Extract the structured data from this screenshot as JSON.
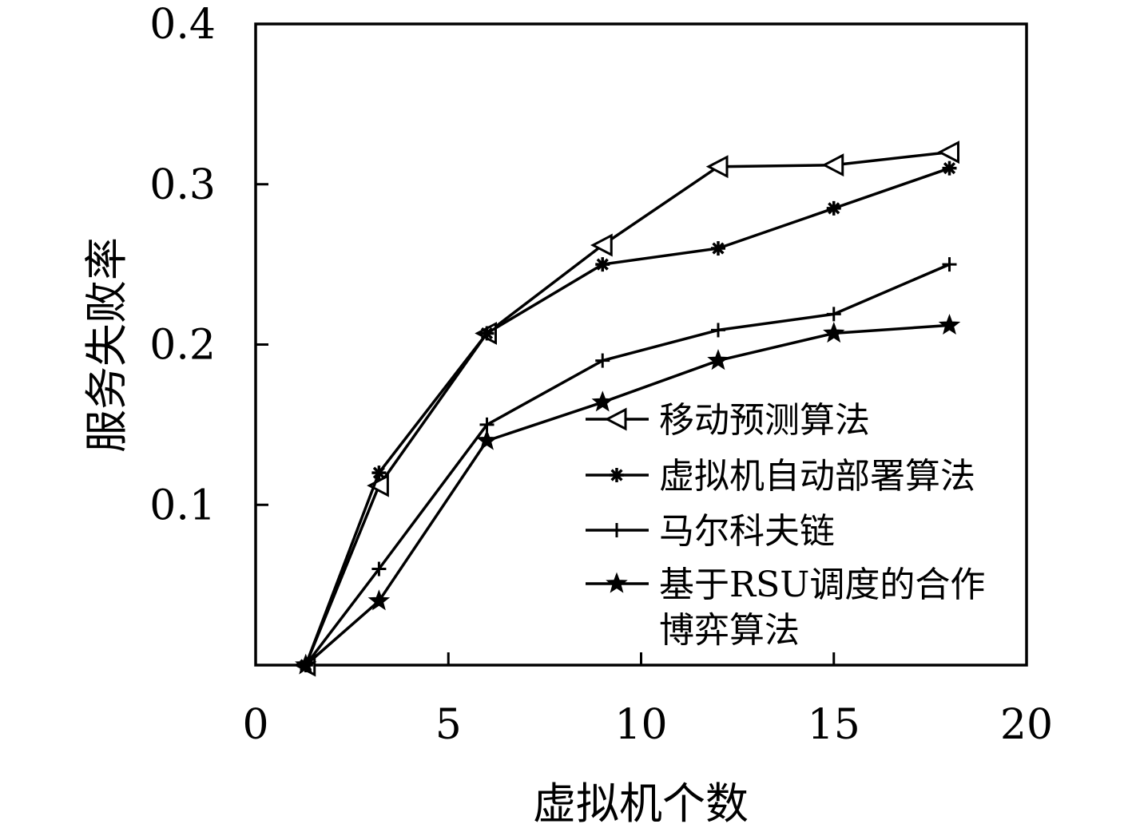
{
  "chart_data": {
    "type": "line",
    "title": "",
    "xlabel": "虚拟机个数",
    "ylabel": "服务失败率",
    "xlim": [
      0,
      20
    ],
    "ylim": [
      0,
      0.4
    ],
    "xticks": [
      0,
      5,
      10,
      15,
      20
    ],
    "xtick_labels": [
      "0",
      "5",
      "10",
      "15",
      "20"
    ],
    "yticks": [
      0.1,
      0.2,
      0.3,
      0.4
    ],
    "ytick_labels": [
      "0.1",
      "0.2",
      "0.3",
      "0.4"
    ],
    "grid": false,
    "legend_position": "bottom-right",
    "line_color": "#000000",
    "x": [
      1.3,
      3.2,
      6.0,
      9.0,
      12.0,
      15.0,
      18.0
    ],
    "series": [
      {
        "name": "移动预测算法",
        "name_lines": [
          "移动预测算法"
        ],
        "marker": "triangle-left",
        "values": [
          0.0,
          0.112,
          0.207,
          0.262,
          0.311,
          0.312,
          0.32
        ]
      },
      {
        "name": "虚拟机自动部署算法",
        "name_lines": [
          "虚拟机自动部署算法"
        ],
        "marker": "asterisk",
        "values": [
          0.0,
          0.12,
          0.207,
          0.25,
          0.26,
          0.285,
          0.31
        ]
      },
      {
        "name": "马尔科夫链",
        "name_lines": [
          "马尔科夫链"
        ],
        "marker": "plus",
        "values": [
          0.0,
          0.06,
          0.15,
          0.19,
          0.209,
          0.219,
          0.25
        ]
      },
      {
        "name": "基于RSU调度的合作博弈算法",
        "name_lines": [
          "基于RSU调度的合作",
          "博弈算法"
        ],
        "marker": "star",
        "values": [
          0.0,
          0.04,
          0.14,
          0.164,
          0.19,
          0.207,
          0.212
        ]
      }
    ]
  }
}
